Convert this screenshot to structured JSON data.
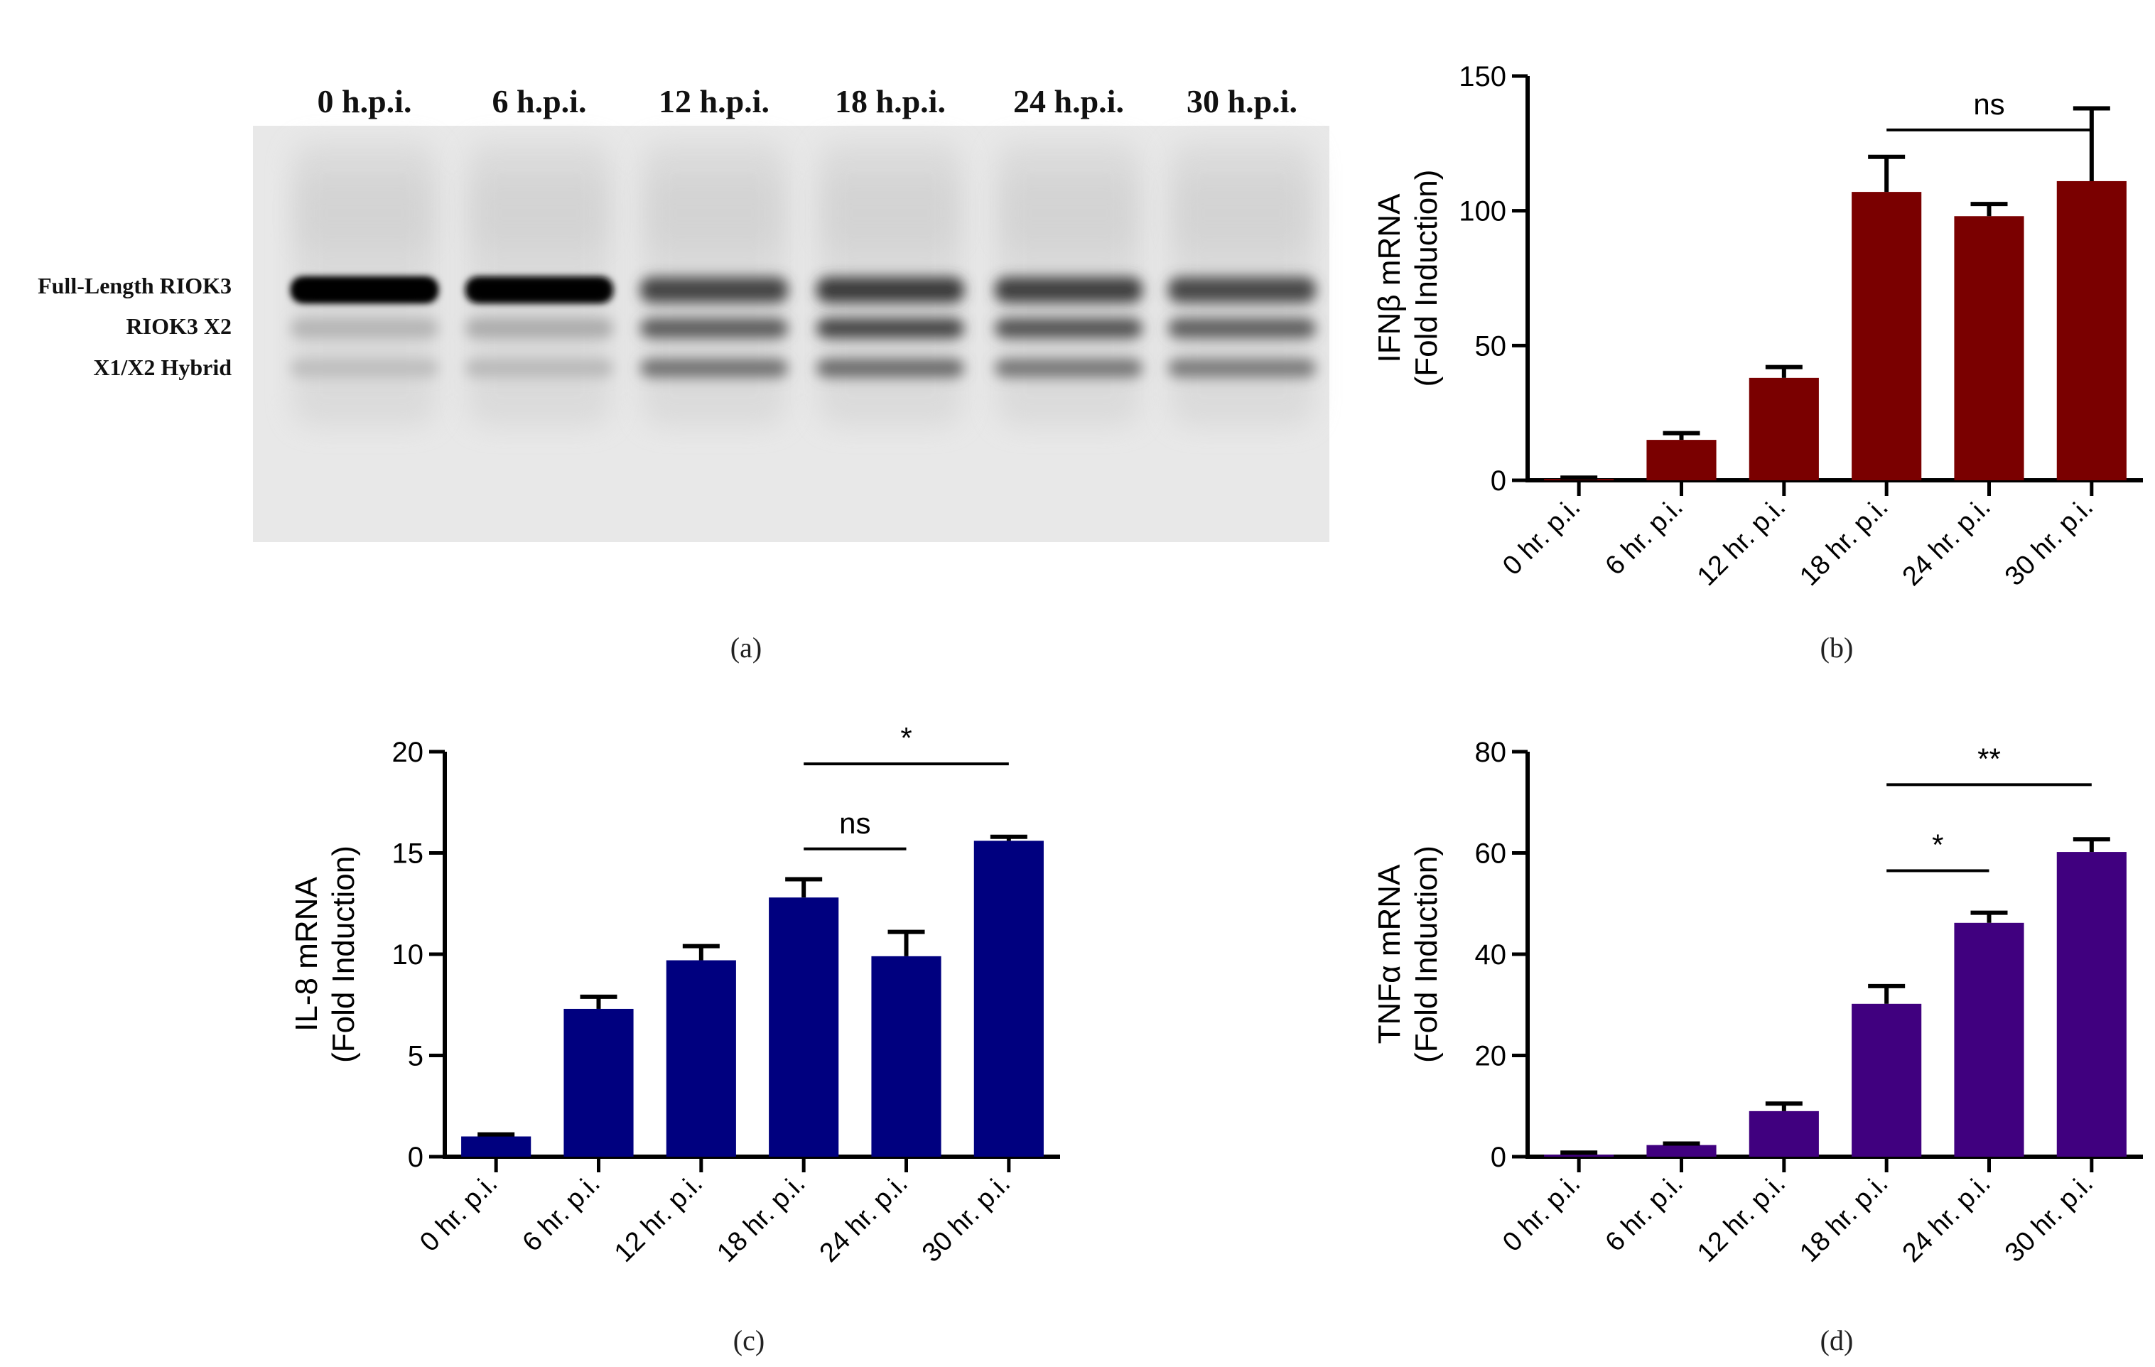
{
  "panel_a": {
    "caption": "(a)",
    "lanes": [
      "0 h.p.i.",
      "6 h.p.i.",
      "12 h.p.i.",
      "18 h.p.i.",
      "24 h.p.i.",
      "30 h.p.i."
    ],
    "band_labels": [
      "Full-Length RIOK3",
      "RIOK3 X2",
      "X1/X2 Hybrid"
    ]
  },
  "chart_data": [
    {
      "type": "bar",
      "id": "b",
      "caption": "(b)",
      "color": "#7a0000",
      "categories": [
        "0 hr. p.i.",
        "6 hr. p.i.",
        "12 hr. p.i.",
        "18 hr. p.i.",
        "24 hr. p.i.",
        "30 hr. p.i."
      ],
      "values": [
        0.5,
        15,
        38,
        107,
        98,
        111
      ],
      "errors": [
        0.5,
        2.5,
        4,
        13,
        4.5,
        27
      ],
      "ylim": [
        0,
        150
      ],
      "yticks": [
        0,
        50,
        100,
        150
      ],
      "ylabel": [
        "IFNβ mRNA",
        "(Fold Induction)"
      ],
      "annotations": [
        {
          "from": 3,
          "to": 5,
          "y": 130,
          "label": "ns"
        }
      ]
    },
    {
      "type": "bar",
      "id": "c",
      "caption": "(c)",
      "color": "#00007f",
      "categories": [
        "0 hr. p.i.",
        "6 hr. p.i.",
        "12 hr. p.i.",
        "18 hr. p.i.",
        "24 hr. p.i.",
        "30 hr. p.i."
      ],
      "values": [
        1.0,
        7.3,
        9.7,
        12.8,
        9.9,
        15.6
      ],
      "errors": [
        0.1,
        0.6,
        0.7,
        0.9,
        1.2,
        0.2
      ],
      "ylim": [
        0,
        20
      ],
      "yticks": [
        0,
        5,
        10,
        15,
        20
      ],
      "ylabel": [
        "IL-8 mRNA",
        "(Fold Induction)"
      ],
      "annotations": [
        {
          "from": 3,
          "to": 4,
          "y": 15.2,
          "label": "ns"
        },
        {
          "from": 3,
          "to": 5,
          "y": 19.4,
          "label": "*"
        }
      ]
    },
    {
      "type": "bar",
      "id": "d",
      "caption": "(d)",
      "color": "#40007f",
      "categories": [
        "0 hr. p.i.",
        "6 hr. p.i.",
        "12 hr. p.i.",
        "18 hr. p.i.",
        "24 hr. p.i.",
        "30 hr. p.i."
      ],
      "values": [
        0.4,
        2.3,
        9.0,
        30.2,
        46.2,
        60.2
      ],
      "errors": [
        0.4,
        0.3,
        1.5,
        3.5,
        2.0,
        2.5
      ],
      "ylim": [
        0,
        80
      ],
      "yticks": [
        0,
        20,
        40,
        60,
        80
      ],
      "ylabel": [
        "TNFα mRNA",
        "(Fold Induction)"
      ],
      "annotations": [
        {
          "from": 3,
          "to": 4,
          "y": 56.5,
          "label": "*"
        },
        {
          "from": 3,
          "to": 5,
          "y": 73.5,
          "label": "**"
        }
      ]
    }
  ]
}
